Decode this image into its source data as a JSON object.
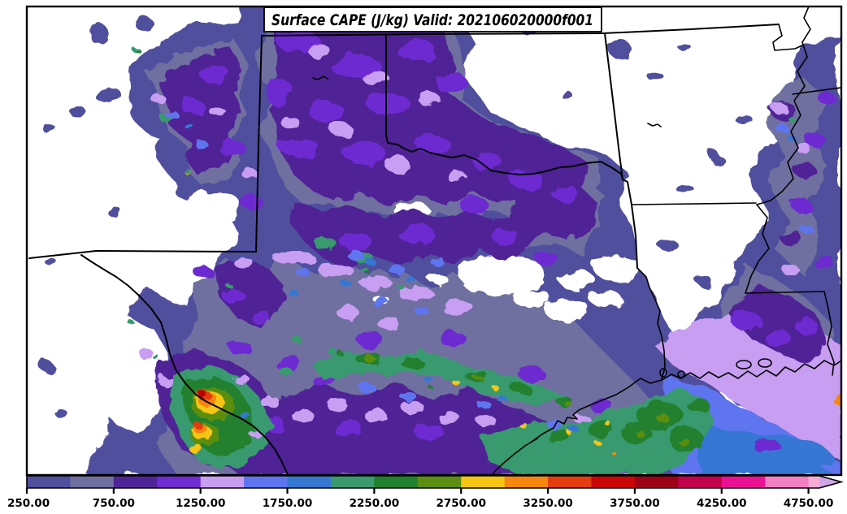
{
  "title": {
    "text": "Surface CAPE (J/kg) Valid: 202106020000f001"
  },
  "colorbar": {
    "tick_labels": [
      "250.00",
      "750.00",
      "1250.00",
      "1750.00",
      "2250.00",
      "2750.00",
      "3250.00",
      "3750.00",
      "4250.00",
      "4750.00"
    ],
    "tick_values": [
      250,
      750,
      1250,
      1750,
      2250,
      2750,
      3250,
      3750,
      4250,
      4750
    ],
    "levels": [
      250,
      500,
      750,
      1000,
      1250,
      1500,
      1750,
      2000,
      2250,
      2500,
      2750,
      3000,
      3250,
      3500,
      3750,
      4000,
      4250,
      4500,
      4750,
      5000
    ],
    "colors": [
      "#4f4f9e",
      "#6f6fa0",
      "#4f2496",
      "#6e2cd1",
      "#c79ef2",
      "#5f75f0",
      "#3677d2",
      "#389a6e",
      "#20802d",
      "#5b8e11",
      "#f6c513",
      "#f8860e",
      "#e33d0f",
      "#cb0606",
      "#9e0219",
      "#c3014c",
      "#ec1092",
      "#f27fc2",
      "#f6abd7"
    ],
    "extend_color": "#cfa6e8",
    "frame_color": "#000000"
  },
  "map": {
    "background_color": "#ffffff",
    "frame_color": "#000000"
  }
}
